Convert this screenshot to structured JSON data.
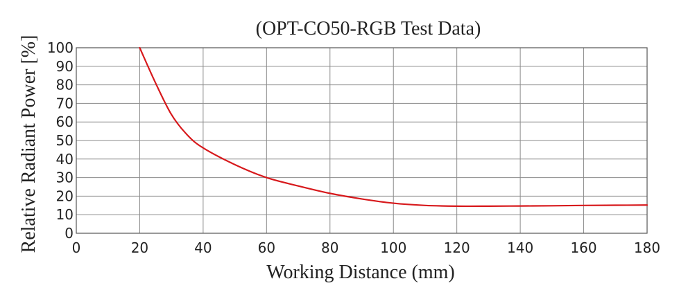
{
  "chart_data": {
    "type": "line",
    "title": "(OPT-CO50-RGB Test Data)",
    "xlabel": "Working Distance (mm)",
    "ylabel": "Relative Radiant Power [%]",
    "xlim": [
      0,
      180
    ],
    "ylim": [
      0,
      100
    ],
    "x_ticks": [
      0,
      20,
      40,
      60,
      80,
      100,
      120,
      140,
      160,
      180
    ],
    "y_ticks": [
      0,
      10,
      20,
      30,
      40,
      50,
      60,
      70,
      80,
      90,
      100
    ],
    "x_grid_step": 20,
    "y_grid_step": 10,
    "grid": true,
    "series": [
      {
        "color": "#d7191c",
        "x": [
          20,
          25,
          30,
          35,
          40,
          50,
          60,
          70,
          80,
          90,
          100,
          110,
          120,
          130,
          140,
          150,
          160,
          170,
          180
        ],
        "y": [
          100,
          81,
          64,
          53,
          46,
          37,
          30,
          25.5,
          21.5,
          18.5,
          16.2,
          15,
          14.6,
          14.6,
          14.7,
          14.8,
          15,
          15.1,
          15.2
        ]
      }
    ]
  }
}
